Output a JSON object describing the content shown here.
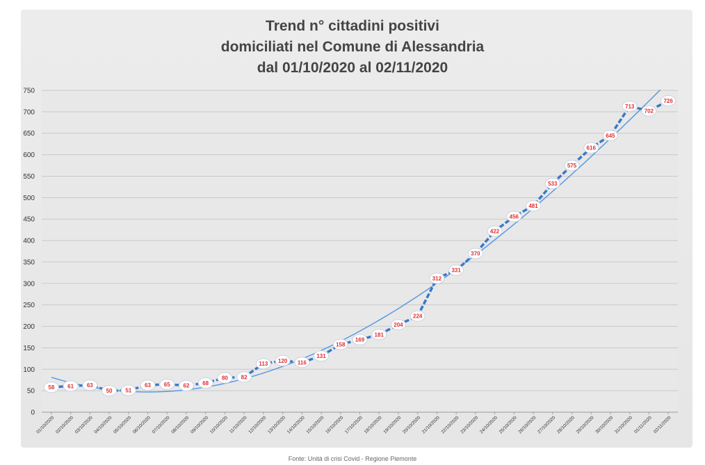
{
  "chart_data": {
    "type": "line",
    "title": [
      "Trend n° cittadini positivi",
      "domiciliati nel Comune di Alessandria",
      "dal 01/10/2020 al 02/11/2020"
    ],
    "source": "Fonte: Unità di crisi Covid - Regione Piemonte",
    "ylim": [
      0,
      750
    ],
    "yticks": [
      0,
      50,
      100,
      150,
      200,
      250,
      300,
      350,
      400,
      450,
      500,
      550,
      600,
      650,
      700,
      750
    ],
    "grid": true,
    "legend": "none",
    "categories": [
      "01/10/2020",
      "02/10/2020",
      "03/10/2020",
      "04/10/2020",
      "05/10/2020",
      "06/10/2020",
      "07/10/2020",
      "08/10/2020",
      "09/10/2020",
      "10/10/2020",
      "11/10/2020",
      "12/10/2020",
      "13/10/2020",
      "14/10/2020",
      "15/10/2020",
      "16/10/2020",
      "17/10/2020",
      "18/10/2020",
      "19/10/2020",
      "20/10/2020",
      "21/10/2020",
      "22/10/2020",
      "23/10/2020",
      "24/10/2020",
      "25/10/2020",
      "26/10/2020",
      "27/10/2020",
      "28/10/2020",
      "29/10/2020",
      "30/10/2020",
      "31/10/2020",
      "01/11/2020",
      "02/11/2020"
    ],
    "series": [
      {
        "values": [
          58,
          61,
          63,
          50,
          51,
          63,
          65,
          62,
          68,
          80,
          82,
          113,
          120,
          116,
          131,
          158,
          169,
          181,
          204,
          224,
          312,
          331,
          370,
          422,
          456,
          481,
          533,
          575,
          616,
          645,
          713,
          702,
          726
        ],
        "color": "#3a78c8"
      }
    ],
    "trendline": {
      "type": "polynomial",
      "color": "#5a9ae0"
    }
  }
}
